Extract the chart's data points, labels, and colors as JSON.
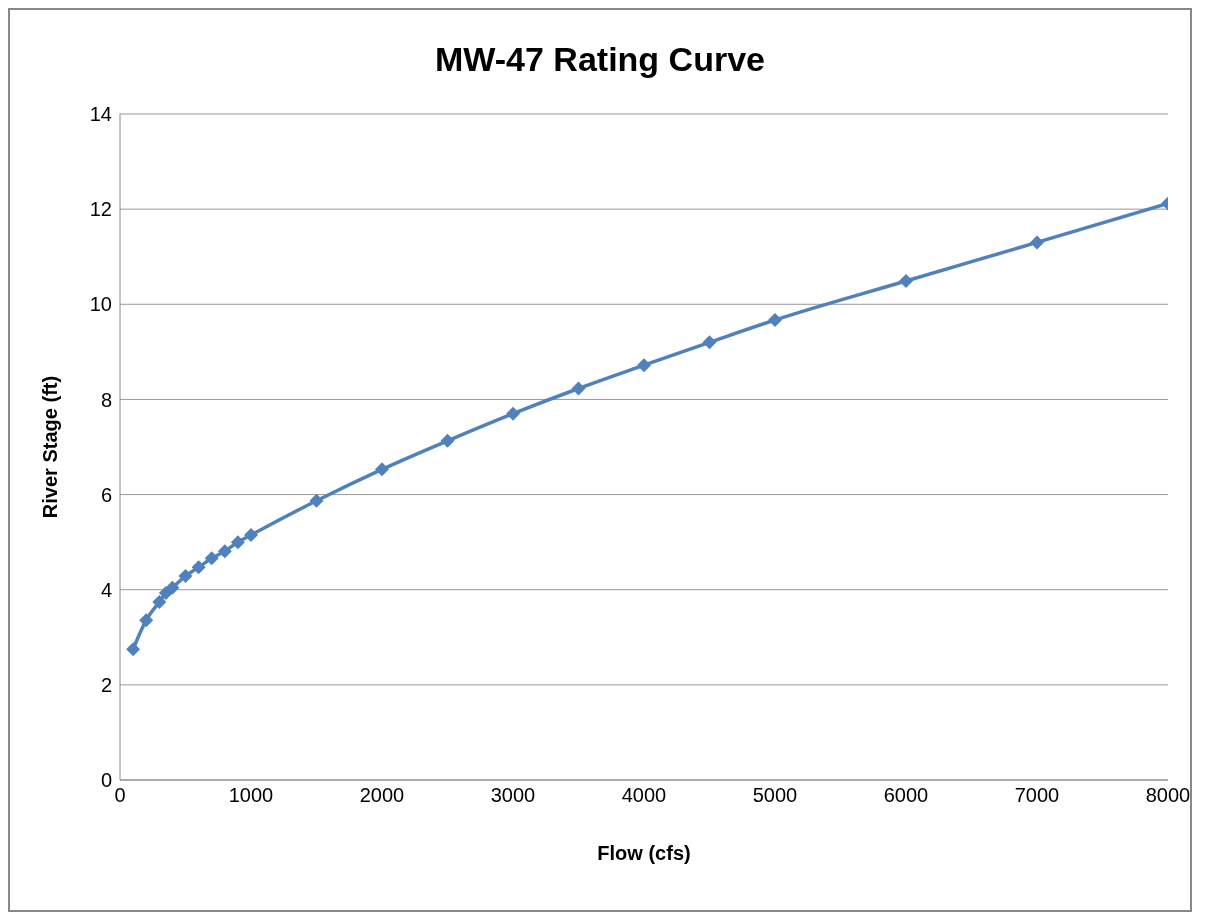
{
  "chart_data": {
    "type": "line",
    "title": "MW-47 Rating Curve",
    "xlabel": "Flow (cfs)",
    "ylabel": "River Stage  (ft)",
    "x": [
      100,
      200,
      300,
      350,
      400,
      500,
      600,
      700,
      800,
      900,
      1000,
      1500,
      2000,
      2500,
      3000,
      3500,
      4000,
      4500,
      5000,
      6000,
      7000,
      8000
    ],
    "series": [
      {
        "color": "#4f81bd",
        "values": [
          2.75,
          3.36,
          3.74,
          3.93,
          4.04,
          4.29,
          4.47,
          4.66,
          4.81,
          5.0,
          5.15,
          5.87,
          6.53,
          7.13,
          7.7,
          8.23,
          8.72,
          9.2,
          9.67,
          10.49,
          11.3,
          12.12
        ]
      }
    ],
    "xlim": [
      0,
      8000
    ],
    "xticks": [
      0,
      1000,
      2000,
      3000,
      4000,
      5000,
      6000,
      7000,
      8000
    ],
    "ylim": [
      0,
      14
    ],
    "yticks": [
      0,
      2,
      4,
      6,
      8,
      10,
      12,
      14
    ],
    "grid": "y",
    "marker": "diamond",
    "line_style": "solid",
    "legend": false
  }
}
